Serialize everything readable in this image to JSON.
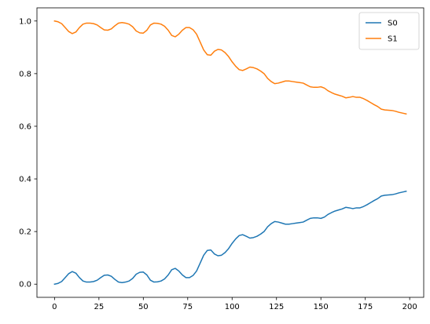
{
  "chart_data": {
    "type": "line",
    "title": "",
    "xlabel": "",
    "ylabel": "",
    "xlim": [
      -9.9,
      207.9
    ],
    "ylim": [
      -0.05,
      1.05
    ],
    "xticks": [
      0,
      25,
      50,
      75,
      100,
      125,
      150,
      175,
      200
    ],
    "yticks": [
      0.0,
      0.2,
      0.4,
      0.6,
      0.8,
      1.0
    ],
    "xtick_labels": [
      "0",
      "25",
      "50",
      "75",
      "100",
      "125",
      "150",
      "175",
      "200"
    ],
    "ytick_labels": [
      "0.0",
      "0.2",
      "0.4",
      "0.6",
      "0.8",
      "1.0"
    ],
    "grid": false,
    "legend_position": "top-right",
    "series": [
      {
        "name": "S0",
        "color": "#1f77b4",
        "x": [
          0,
          2,
          4,
          6,
          8,
          10,
          12,
          14,
          16,
          18,
          20,
          22,
          24,
          26,
          28,
          30,
          32,
          34,
          36,
          38,
          40,
          42,
          44,
          46,
          48,
          50,
          52,
          54,
          56,
          58,
          60,
          62,
          64,
          66,
          68,
          70,
          72,
          74,
          76,
          78,
          80,
          82,
          84,
          86,
          88,
          90,
          92,
          94,
          96,
          98,
          100,
          102,
          104,
          106,
          108,
          110,
          112,
          114,
          116,
          118,
          120,
          122,
          124,
          126,
          128,
          130,
          132,
          134,
          136,
          138,
          140,
          142,
          144,
          146,
          148,
          150,
          152,
          154,
          156,
          158,
          160,
          162,
          164,
          166,
          168,
          170,
          172,
          174,
          176,
          178,
          180,
          182,
          184,
          186,
          188,
          190,
          192,
          194,
          196,
          198
        ],
        "y": [
          0.0,
          0.003,
          0.01,
          0.025,
          0.04,
          0.048,
          0.042,
          0.025,
          0.012,
          0.008,
          0.008,
          0.01,
          0.015,
          0.025,
          0.034,
          0.035,
          0.03,
          0.018,
          0.008,
          0.006,
          0.008,
          0.012,
          0.022,
          0.038,
          0.045,
          0.046,
          0.035,
          0.015,
          0.008,
          0.009,
          0.012,
          0.02,
          0.035,
          0.055,
          0.06,
          0.05,
          0.035,
          0.025,
          0.025,
          0.033,
          0.05,
          0.08,
          0.11,
          0.128,
          0.13,
          0.115,
          0.108,
          0.11,
          0.12,
          0.135,
          0.155,
          0.172,
          0.185,
          0.188,
          0.182,
          0.175,
          0.177,
          0.182,
          0.19,
          0.2,
          0.218,
          0.23,
          0.238,
          0.236,
          0.232,
          0.228,
          0.228,
          0.23,
          0.232,
          0.234,
          0.236,
          0.243,
          0.25,
          0.252,
          0.252,
          0.25,
          0.255,
          0.265,
          0.272,
          0.278,
          0.282,
          0.286,
          0.292,
          0.29,
          0.287,
          0.29,
          0.29,
          0.295,
          0.302,
          0.31,
          0.318,
          0.325,
          0.335,
          0.338,
          0.339,
          0.34,
          0.343,
          0.347,
          0.35,
          0.353
        ]
      },
      {
        "name": "S1",
        "color": "#ff7f0e",
        "x": [
          0,
          2,
          4,
          6,
          8,
          10,
          12,
          14,
          16,
          18,
          20,
          22,
          24,
          26,
          28,
          30,
          32,
          34,
          36,
          38,
          40,
          42,
          44,
          46,
          48,
          50,
          52,
          54,
          56,
          58,
          60,
          62,
          64,
          66,
          68,
          70,
          72,
          74,
          76,
          78,
          80,
          82,
          84,
          86,
          88,
          90,
          92,
          94,
          96,
          98,
          100,
          102,
          104,
          106,
          108,
          110,
          112,
          114,
          116,
          118,
          120,
          122,
          124,
          126,
          128,
          130,
          132,
          134,
          136,
          138,
          140,
          142,
          144,
          146,
          148,
          150,
          152,
          154,
          156,
          158,
          160,
          162,
          164,
          166,
          168,
          170,
          172,
          174,
          176,
          178,
          180,
          182,
          184,
          186,
          188,
          190,
          192,
          194,
          196,
          198
        ],
        "y": [
          1.0,
          0.997,
          0.99,
          0.975,
          0.96,
          0.952,
          0.958,
          0.975,
          0.988,
          0.992,
          0.992,
          0.99,
          0.985,
          0.975,
          0.966,
          0.965,
          0.97,
          0.982,
          0.992,
          0.994,
          0.992,
          0.988,
          0.978,
          0.962,
          0.955,
          0.954,
          0.965,
          0.985,
          0.992,
          0.991,
          0.988,
          0.98,
          0.965,
          0.945,
          0.94,
          0.95,
          0.965,
          0.975,
          0.975,
          0.967,
          0.95,
          0.92,
          0.89,
          0.872,
          0.87,
          0.885,
          0.892,
          0.89,
          0.88,
          0.865,
          0.845,
          0.828,
          0.815,
          0.812,
          0.818,
          0.825,
          0.823,
          0.818,
          0.81,
          0.8,
          0.782,
          0.77,
          0.762,
          0.764,
          0.768,
          0.772,
          0.772,
          0.77,
          0.768,
          0.766,
          0.764,
          0.757,
          0.75,
          0.748,
          0.748,
          0.75,
          0.745,
          0.735,
          0.728,
          0.722,
          0.718,
          0.714,
          0.708,
          0.71,
          0.713,
          0.71,
          0.71,
          0.705,
          0.698,
          0.69,
          0.682,
          0.675,
          0.665,
          0.662,
          0.661,
          0.66,
          0.657,
          0.653,
          0.65,
          0.647
        ]
      }
    ]
  }
}
